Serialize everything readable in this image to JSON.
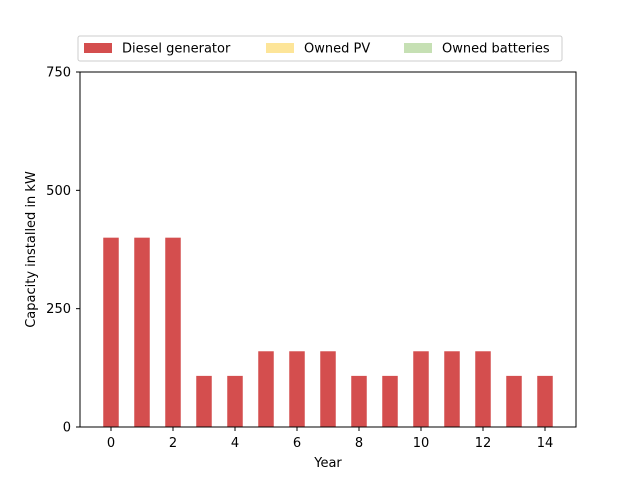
{
  "chart_data": {
    "type": "bar",
    "title": "",
    "xlabel": "Year",
    "ylabel": "Capacity installed in kW",
    "x": [
      0,
      1,
      2,
      3,
      4,
      5,
      6,
      7,
      8,
      9,
      10,
      11,
      12,
      13,
      14
    ],
    "xticks": [
      0,
      2,
      4,
      6,
      8,
      10,
      12,
      14
    ],
    "yticks": [
      0,
      250,
      500,
      750
    ],
    "xlim": [
      -1,
      15
    ],
    "ylim": [
      0,
      750
    ],
    "stacked": true,
    "grid": false,
    "legend_position": "top-center",
    "series": [
      {
        "name": "Diesel generator",
        "color": "#d44e4e",
        "values": [
          400,
          400,
          400,
          108,
          108,
          160,
          160,
          160,
          108,
          108,
          160,
          160,
          160,
          108,
          108
        ]
      },
      {
        "name": "Owned PV",
        "color": "#fde599",
        "values": [
          0,
          0,
          0,
          0,
          0,
          0,
          0,
          0,
          0,
          0,
          0,
          0,
          0,
          0,
          0
        ]
      },
      {
        "name": "Owned batteries",
        "color": "#c6e0b4",
        "values": [
          0,
          0,
          0,
          0,
          0,
          0,
          0,
          0,
          0,
          0,
          0,
          0,
          0,
          0,
          0
        ]
      }
    ]
  }
}
